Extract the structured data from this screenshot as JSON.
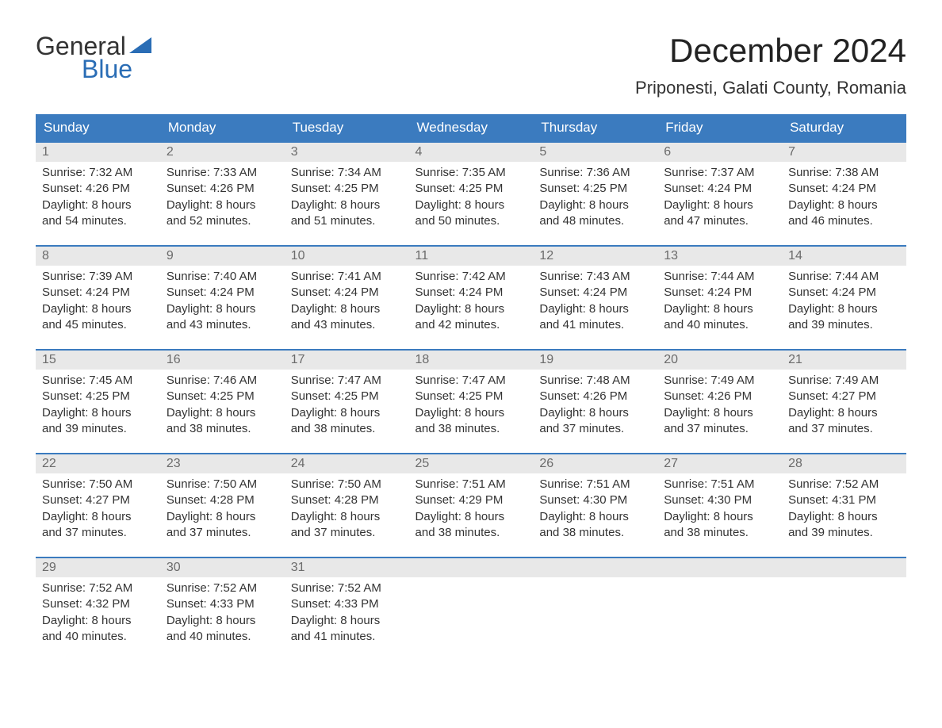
{
  "brand": {
    "text1": "General",
    "text2": "Blue",
    "accent": "#2a6db5"
  },
  "title": "December 2024",
  "location": "Priponesti, Galati County, Romania",
  "header_bg": "#3b7bbf",
  "header_fg": "#ffffff",
  "daynum_bg": "#e8e8e8",
  "daynum_fg": "#6b6b6b",
  "text_color": "#333333",
  "days_of_week": [
    "Sunday",
    "Monday",
    "Tuesday",
    "Wednesday",
    "Thursday",
    "Friday",
    "Saturday"
  ],
  "weeks": [
    [
      {
        "n": "1",
        "sr": "Sunrise: 7:32 AM",
        "ss": "Sunset: 4:26 PM",
        "d1": "Daylight: 8 hours",
        "d2": "and 54 minutes."
      },
      {
        "n": "2",
        "sr": "Sunrise: 7:33 AM",
        "ss": "Sunset: 4:26 PM",
        "d1": "Daylight: 8 hours",
        "d2": "and 52 minutes."
      },
      {
        "n": "3",
        "sr": "Sunrise: 7:34 AM",
        "ss": "Sunset: 4:25 PM",
        "d1": "Daylight: 8 hours",
        "d2": "and 51 minutes."
      },
      {
        "n": "4",
        "sr": "Sunrise: 7:35 AM",
        "ss": "Sunset: 4:25 PM",
        "d1": "Daylight: 8 hours",
        "d2": "and 50 minutes."
      },
      {
        "n": "5",
        "sr": "Sunrise: 7:36 AM",
        "ss": "Sunset: 4:25 PM",
        "d1": "Daylight: 8 hours",
        "d2": "and 48 minutes."
      },
      {
        "n": "6",
        "sr": "Sunrise: 7:37 AM",
        "ss": "Sunset: 4:24 PM",
        "d1": "Daylight: 8 hours",
        "d2": "and 47 minutes."
      },
      {
        "n": "7",
        "sr": "Sunrise: 7:38 AM",
        "ss": "Sunset: 4:24 PM",
        "d1": "Daylight: 8 hours",
        "d2": "and 46 minutes."
      }
    ],
    [
      {
        "n": "8",
        "sr": "Sunrise: 7:39 AM",
        "ss": "Sunset: 4:24 PM",
        "d1": "Daylight: 8 hours",
        "d2": "and 45 minutes."
      },
      {
        "n": "9",
        "sr": "Sunrise: 7:40 AM",
        "ss": "Sunset: 4:24 PM",
        "d1": "Daylight: 8 hours",
        "d2": "and 43 minutes."
      },
      {
        "n": "10",
        "sr": "Sunrise: 7:41 AM",
        "ss": "Sunset: 4:24 PM",
        "d1": "Daylight: 8 hours",
        "d2": "and 43 minutes."
      },
      {
        "n": "11",
        "sr": "Sunrise: 7:42 AM",
        "ss": "Sunset: 4:24 PM",
        "d1": "Daylight: 8 hours",
        "d2": "and 42 minutes."
      },
      {
        "n": "12",
        "sr": "Sunrise: 7:43 AM",
        "ss": "Sunset: 4:24 PM",
        "d1": "Daylight: 8 hours",
        "d2": "and 41 minutes."
      },
      {
        "n": "13",
        "sr": "Sunrise: 7:44 AM",
        "ss": "Sunset: 4:24 PM",
        "d1": "Daylight: 8 hours",
        "d2": "and 40 minutes."
      },
      {
        "n": "14",
        "sr": "Sunrise: 7:44 AM",
        "ss": "Sunset: 4:24 PM",
        "d1": "Daylight: 8 hours",
        "d2": "and 39 minutes."
      }
    ],
    [
      {
        "n": "15",
        "sr": "Sunrise: 7:45 AM",
        "ss": "Sunset: 4:25 PM",
        "d1": "Daylight: 8 hours",
        "d2": "and 39 minutes."
      },
      {
        "n": "16",
        "sr": "Sunrise: 7:46 AM",
        "ss": "Sunset: 4:25 PM",
        "d1": "Daylight: 8 hours",
        "d2": "and 38 minutes."
      },
      {
        "n": "17",
        "sr": "Sunrise: 7:47 AM",
        "ss": "Sunset: 4:25 PM",
        "d1": "Daylight: 8 hours",
        "d2": "and 38 minutes."
      },
      {
        "n": "18",
        "sr": "Sunrise: 7:47 AM",
        "ss": "Sunset: 4:25 PM",
        "d1": "Daylight: 8 hours",
        "d2": "and 38 minutes."
      },
      {
        "n": "19",
        "sr": "Sunrise: 7:48 AM",
        "ss": "Sunset: 4:26 PM",
        "d1": "Daylight: 8 hours",
        "d2": "and 37 minutes."
      },
      {
        "n": "20",
        "sr": "Sunrise: 7:49 AM",
        "ss": "Sunset: 4:26 PM",
        "d1": "Daylight: 8 hours",
        "d2": "and 37 minutes."
      },
      {
        "n": "21",
        "sr": "Sunrise: 7:49 AM",
        "ss": "Sunset: 4:27 PM",
        "d1": "Daylight: 8 hours",
        "d2": "and 37 minutes."
      }
    ],
    [
      {
        "n": "22",
        "sr": "Sunrise: 7:50 AM",
        "ss": "Sunset: 4:27 PM",
        "d1": "Daylight: 8 hours",
        "d2": "and 37 minutes."
      },
      {
        "n": "23",
        "sr": "Sunrise: 7:50 AM",
        "ss": "Sunset: 4:28 PM",
        "d1": "Daylight: 8 hours",
        "d2": "and 37 minutes."
      },
      {
        "n": "24",
        "sr": "Sunrise: 7:50 AM",
        "ss": "Sunset: 4:28 PM",
        "d1": "Daylight: 8 hours",
        "d2": "and 37 minutes."
      },
      {
        "n": "25",
        "sr": "Sunrise: 7:51 AM",
        "ss": "Sunset: 4:29 PM",
        "d1": "Daylight: 8 hours",
        "d2": "and 38 minutes."
      },
      {
        "n": "26",
        "sr": "Sunrise: 7:51 AM",
        "ss": "Sunset: 4:30 PM",
        "d1": "Daylight: 8 hours",
        "d2": "and 38 minutes."
      },
      {
        "n": "27",
        "sr": "Sunrise: 7:51 AM",
        "ss": "Sunset: 4:30 PM",
        "d1": "Daylight: 8 hours",
        "d2": "and 38 minutes."
      },
      {
        "n": "28",
        "sr": "Sunrise: 7:52 AM",
        "ss": "Sunset: 4:31 PM",
        "d1": "Daylight: 8 hours",
        "d2": "and 39 minutes."
      }
    ],
    [
      {
        "n": "29",
        "sr": "Sunrise: 7:52 AM",
        "ss": "Sunset: 4:32 PM",
        "d1": "Daylight: 8 hours",
        "d2": "and 40 minutes."
      },
      {
        "n": "30",
        "sr": "Sunrise: 7:52 AM",
        "ss": "Sunset: 4:33 PM",
        "d1": "Daylight: 8 hours",
        "d2": "and 40 minutes."
      },
      {
        "n": "31",
        "sr": "Sunrise: 7:52 AM",
        "ss": "Sunset: 4:33 PM",
        "d1": "Daylight: 8 hours",
        "d2": "and 41 minutes."
      },
      null,
      null,
      null,
      null
    ]
  ]
}
